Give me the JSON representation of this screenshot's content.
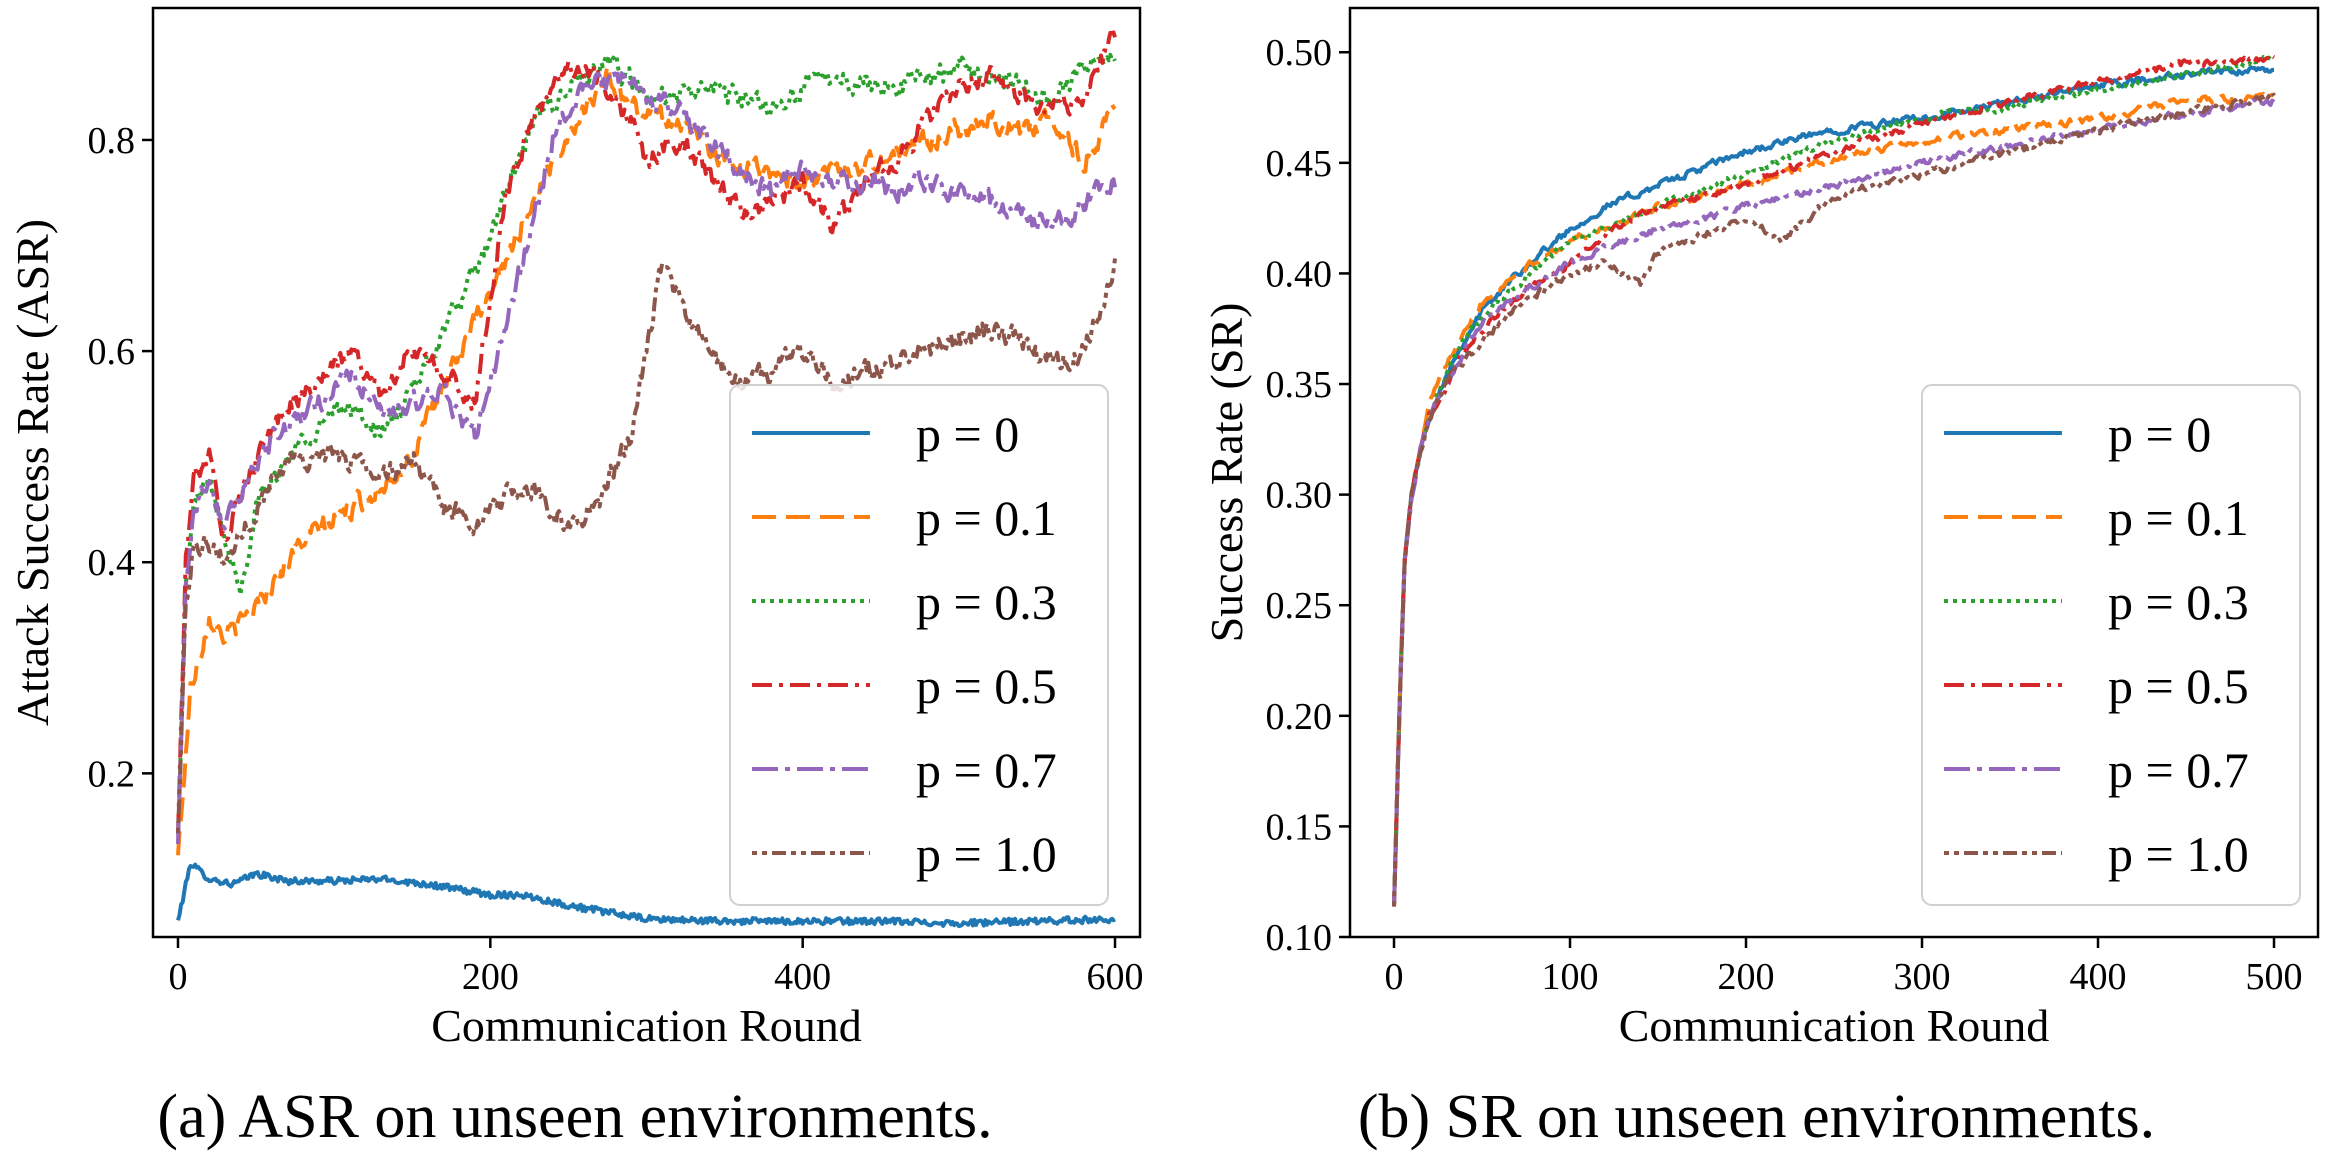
{
  "captions": {
    "a": "(a) ASR on unseen environments.",
    "b": "(b) SR on unseen environments."
  },
  "styles": [
    {
      "color": "#1f77b4",
      "dash": ""
    },
    {
      "color": "#ff7f0e",
      "dash": "24 10"
    },
    {
      "color": "#2ca02c",
      "dash": "4 5"
    },
    {
      "color": "#d62728",
      "dash": "20 7 4 7"
    },
    {
      "color": "#9467bd",
      "dash": "26 7 5 7"
    },
    {
      "color": "#8c564b",
      "dash": "5 5 5 5 14 5"
    }
  ],
  "chart_data": [
    {
      "type": "line",
      "title": "",
      "xlabel": "Communication Round",
      "ylabel": "Attack Success Rate (ASR)",
      "xlim": [
        -16,
        616
      ],
      "ylim": [
        0.045,
        0.925
      ],
      "xticks": [
        0,
        200,
        400,
        600
      ],
      "yticks": [
        0.2,
        0.4,
        0.6,
        0.8
      ],
      "ytick_decimals": 1,
      "legend": "lower-right",
      "noise": 0.018,
      "series": [
        {
          "name": "p = 0",
          "x": [
            0,
            8,
            20,
            35,
            50,
            70,
            100,
            130,
            160,
            200,
            220,
            250,
            300,
            350,
            400,
            450,
            500,
            550,
            600
          ],
          "y": [
            0.06,
            0.115,
            0.1,
            0.095,
            0.105,
            0.098,
            0.098,
            0.1,
            0.095,
            0.085,
            0.085,
            0.075,
            0.062,
            0.06,
            0.06,
            0.06,
            0.058,
            0.06,
            0.062
          ]
        },
        {
          "name": "p = 0.1",
          "x": [
            0,
            8,
            20,
            30,
            40,
            60,
            80,
            100,
            120,
            150,
            180,
            200,
            220,
            240,
            260,
            275,
            290,
            320,
            350,
            380,
            400,
            420,
            450,
            480,
            500,
            520,
            540,
            560,
            580,
            600
          ],
          "y": [
            0.12,
            0.28,
            0.35,
            0.33,
            0.34,
            0.38,
            0.42,
            0.44,
            0.46,
            0.5,
            0.6,
            0.65,
            0.72,
            0.78,
            0.83,
            0.86,
            0.83,
            0.82,
            0.78,
            0.77,
            0.76,
            0.77,
            0.78,
            0.8,
            0.81,
            0.82,
            0.81,
            0.82,
            0.78,
            0.83
          ]
        },
        {
          "name": "p = 0.3",
          "x": [
            0,
            5,
            10,
            20,
            30,
            40,
            50,
            70,
            90,
            110,
            130,
            150,
            170,
            190,
            210,
            230,
            250,
            260,
            280,
            300,
            320,
            340,
            360,
            380,
            400,
            420,
            450,
            480,
            500,
            520,
            540,
            560,
            580,
            600
          ],
          "y": [
            0.14,
            0.38,
            0.45,
            0.48,
            0.42,
            0.38,
            0.45,
            0.5,
            0.53,
            0.55,
            0.52,
            0.56,
            0.62,
            0.67,
            0.75,
            0.82,
            0.85,
            0.86,
            0.87,
            0.84,
            0.84,
            0.85,
            0.84,
            0.83,
            0.85,
            0.86,
            0.85,
            0.86,
            0.87,
            0.86,
            0.85,
            0.84,
            0.87,
            0.88
          ]
        },
        {
          "name": "p = 0.5",
          "x": [
            0,
            5,
            10,
            20,
            30,
            50,
            70,
            90,
            110,
            130,
            150,
            170,
            190,
            210,
            230,
            250,
            270,
            290,
            300,
            320,
            340,
            360,
            380,
            400,
            420,
            440,
            460,
            480,
            500,
            520,
            540,
            560,
            580,
            600
          ],
          "y": [
            0.14,
            0.4,
            0.48,
            0.5,
            0.42,
            0.5,
            0.55,
            0.57,
            0.6,
            0.56,
            0.6,
            0.58,
            0.55,
            0.75,
            0.83,
            0.87,
            0.86,
            0.82,
            0.78,
            0.8,
            0.77,
            0.73,
            0.74,
            0.76,
            0.72,
            0.76,
            0.78,
            0.82,
            0.85,
            0.86,
            0.84,
            0.83,
            0.84,
            0.9
          ]
        },
        {
          "name": "p = 0.7",
          "x": [
            0,
            5,
            10,
            20,
            30,
            50,
            70,
            90,
            110,
            130,
            150,
            170,
            190,
            210,
            220,
            240,
            260,
            280,
            300,
            320,
            340,
            360,
            380,
            400,
            420,
            440,
            460,
            480,
            500,
            520,
            540,
            560,
            580,
            600
          ],
          "y": [
            0.13,
            0.38,
            0.45,
            0.48,
            0.43,
            0.5,
            0.53,
            0.55,
            0.58,
            0.54,
            0.55,
            0.56,
            0.52,
            0.62,
            0.68,
            0.8,
            0.85,
            0.86,
            0.84,
            0.83,
            0.8,
            0.77,
            0.75,
            0.77,
            0.76,
            0.76,
            0.75,
            0.76,
            0.75,
            0.74,
            0.73,
            0.72,
            0.74,
            0.76
          ]
        },
        {
          "name": "p = 1.0",
          "x": [
            0,
            5,
            10,
            20,
            30,
            50,
            70,
            90,
            110,
            130,
            150,
            170,
            190,
            210,
            230,
            250,
            270,
            290,
            300,
            310,
            320,
            340,
            360,
            380,
            400,
            420,
            440,
            460,
            480,
            500,
            520,
            540,
            560,
            580,
            600
          ],
          "y": [
            0.14,
            0.36,
            0.42,
            0.42,
            0.4,
            0.45,
            0.5,
            0.5,
            0.5,
            0.48,
            0.5,
            0.45,
            0.44,
            0.46,
            0.47,
            0.43,
            0.46,
            0.52,
            0.6,
            0.68,
            0.65,
            0.6,
            0.57,
            0.58,
            0.6,
            0.57,
            0.58,
            0.59,
            0.6,
            0.61,
            0.62,
            0.61,
            0.59,
            0.6,
            0.68
          ]
        }
      ]
    },
    {
      "type": "line",
      "title": "",
      "xlabel": "Communication Round",
      "ylabel": "Success Rate (SR)",
      "xlim": [
        -25,
        525
      ],
      "ylim": [
        0.1,
        0.52
      ],
      "xticks": [
        0,
        100,
        200,
        300,
        400,
        500
      ],
      "yticks": [
        0.1,
        0.15,
        0.2,
        0.25,
        0.3,
        0.35,
        0.4,
        0.45,
        0.5
      ],
      "ytick_decimals": 2,
      "legend": "lower-right",
      "noise": 0.003,
      "series": [
        {
          "name": "p = 0",
          "x": [
            0,
            3,
            6,
            10,
            15,
            20,
            30,
            40,
            50,
            70,
            100,
            120,
            150,
            200,
            250,
            300,
            350,
            400,
            450,
            500
          ],
          "y": [
            0.115,
            0.2,
            0.27,
            0.3,
            0.32,
            0.335,
            0.355,
            0.37,
            0.383,
            0.4,
            0.42,
            0.43,
            0.44,
            0.455,
            0.465,
            0.47,
            0.477,
            0.485,
            0.49,
            0.492
          ]
        },
        {
          "name": "p = 0.1",
          "x": [
            0,
            3,
            6,
            10,
            15,
            20,
            30,
            40,
            50,
            70,
            100,
            120,
            150,
            200,
            250,
            300,
            350,
            400,
            450,
            500
          ],
          "y": [
            0.115,
            0.2,
            0.27,
            0.3,
            0.32,
            0.34,
            0.36,
            0.375,
            0.387,
            0.4,
            0.415,
            0.42,
            0.43,
            0.44,
            0.452,
            0.46,
            0.465,
            0.47,
            0.478,
            0.48
          ]
        },
        {
          "name": "p = 0.3",
          "x": [
            0,
            3,
            6,
            10,
            15,
            20,
            30,
            40,
            50,
            70,
            100,
            120,
            150,
            200,
            250,
            300,
            350,
            400,
            450,
            500
          ],
          "y": [
            0.115,
            0.2,
            0.27,
            0.3,
            0.32,
            0.335,
            0.355,
            0.37,
            0.38,
            0.395,
            0.415,
            0.42,
            0.43,
            0.445,
            0.46,
            0.47,
            0.475,
            0.483,
            0.49,
            0.498
          ]
        },
        {
          "name": "p = 0.5",
          "x": [
            0,
            3,
            6,
            10,
            15,
            20,
            30,
            40,
            50,
            70,
            100,
            120,
            150,
            200,
            250,
            300,
            350,
            400,
            450,
            500
          ],
          "y": [
            0.115,
            0.2,
            0.27,
            0.3,
            0.32,
            0.335,
            0.35,
            0.365,
            0.375,
            0.39,
            0.405,
            0.418,
            0.43,
            0.44,
            0.455,
            0.468,
            0.478,
            0.487,
            0.495,
            0.498
          ]
        },
        {
          "name": "p = 0.7",
          "x": [
            0,
            3,
            6,
            10,
            15,
            20,
            30,
            40,
            50,
            70,
            100,
            120,
            150,
            200,
            250,
            300,
            350,
            400,
            450,
            500
          ],
          "y": [
            0.115,
            0.2,
            0.27,
            0.3,
            0.32,
            0.335,
            0.35,
            0.365,
            0.378,
            0.39,
            0.405,
            0.412,
            0.42,
            0.43,
            0.44,
            0.45,
            0.458,
            0.465,
            0.472,
            0.478
          ]
        },
        {
          "name": "p = 1.0",
          "x": [
            0,
            3,
            6,
            10,
            15,
            20,
            30,
            40,
            50,
            70,
            100,
            120,
            140,
            150,
            200,
            220,
            250,
            300,
            350,
            400,
            450,
            500
          ],
          "y": [
            0.115,
            0.2,
            0.27,
            0.3,
            0.32,
            0.335,
            0.35,
            0.36,
            0.37,
            0.385,
            0.4,
            0.405,
            0.395,
            0.41,
            0.425,
            0.415,
            0.435,
            0.445,
            0.455,
            0.465,
            0.473,
            0.48
          ]
        }
      ]
    }
  ]
}
